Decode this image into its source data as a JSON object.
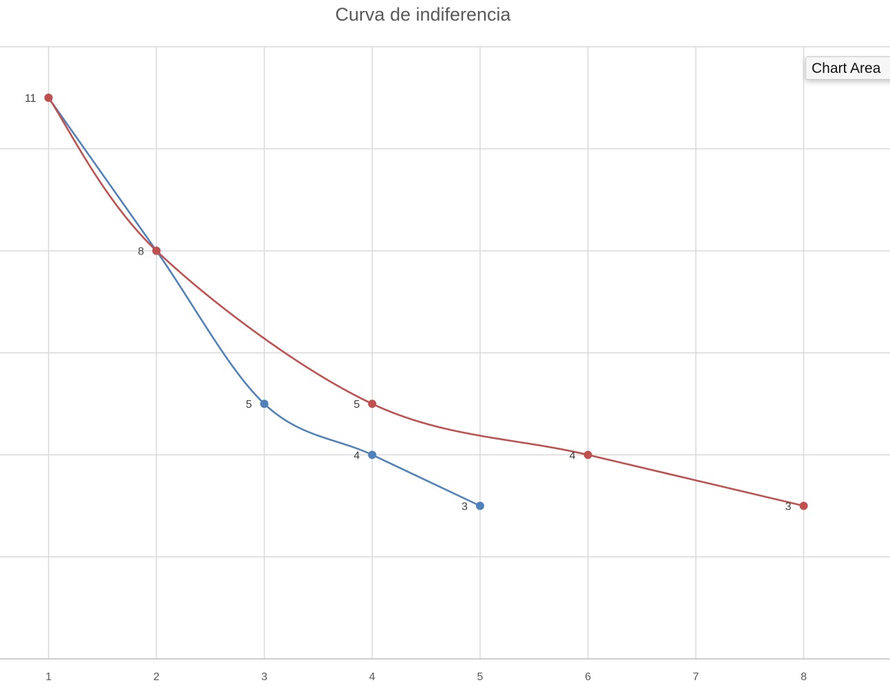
{
  "chart_data": {
    "type": "scatter",
    "title": "Curva de indiferencia",
    "xlabel": "",
    "ylabel": "",
    "xlim": [
      0.55,
      8.8
    ],
    "ylim": [
      0,
      12
    ],
    "x_ticks": [
      1,
      2,
      3,
      4,
      5,
      6,
      7,
      8
    ],
    "y_gridlines": [
      0,
      2,
      4,
      6,
      8,
      10,
      12
    ],
    "grid": true,
    "smooth_lines": true,
    "data_labels": "y-left",
    "series": [
      {
        "color": "#4f81bd",
        "x": [
          1,
          2,
          3,
          4,
          5
        ],
        "y": [
          11,
          8,
          5,
          4,
          3
        ]
      },
      {
        "color": "#c0504d",
        "x": [
          1,
          2,
          4,
          6,
          8
        ],
        "y": [
          11,
          8,
          5,
          4,
          3
        ]
      }
    ]
  },
  "tooltip": {
    "label": "Chart Area"
  }
}
